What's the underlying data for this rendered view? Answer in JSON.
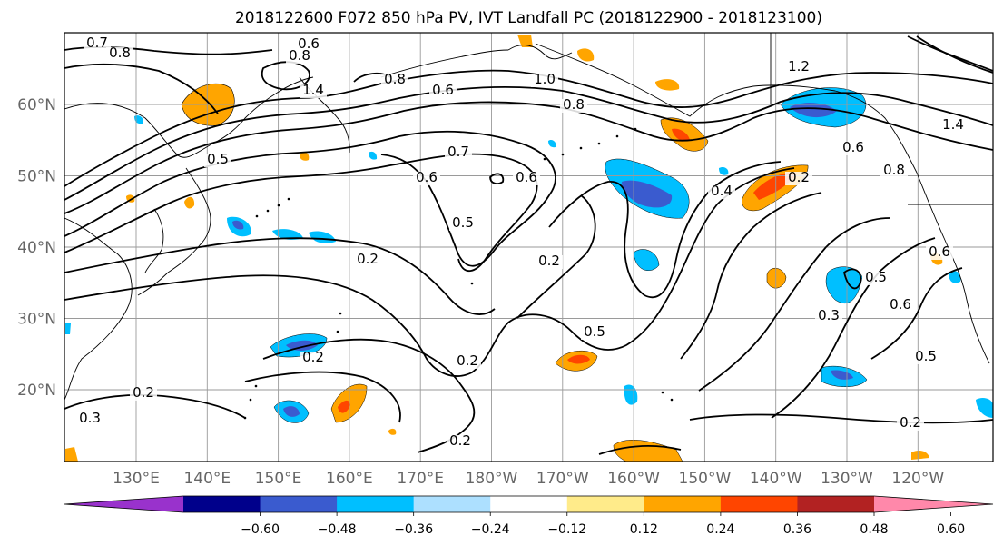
{
  "title": "2018122600 F072 850 hPa PV, IVT Landfall PC (2018122900 - 2018123100)",
  "map": {
    "lon_ticks": [
      "130°E",
      "140°E",
      "150°E",
      "160°E",
      "170°E",
      "180°W",
      "170°W",
      "160°W",
      "150°W",
      "140°W",
      "130°W",
      "120°W"
    ],
    "lat_ticks": [
      "60°N",
      "50°N",
      "40°N",
      "30°N",
      "20°N"
    ],
    "contour_labels": [
      "0.7",
      "0.8",
      "0.6",
      "0.8",
      "1.4",
      "0.8",
      "0.6",
      "1.0",
      "0.8",
      "1.2",
      "1.4",
      "0.8",
      "0.6",
      "0.7",
      "0.6",
      "0.6",
      "0.5",
      "0.4",
      "0.2",
      "0.2",
      "0.5",
      "0.3",
      "0.5",
      "0.6",
      "0.5",
      "0.6",
      "0.5",
      "0.2",
      "0.2",
      "0.2",
      "0.2",
      "0.3",
      "0.2",
      "0.2"
    ]
  },
  "colorbar": {
    "colors": [
      "#9932CC",
      "#00008B",
      "#3A5BCF",
      "#00BFFF",
      "#ADE0FF",
      "#FFFFFF",
      "#FFEB8A",
      "#FFA500",
      "#FF4500",
      "#B22222",
      "#FF88AA"
    ],
    "levels": [
      "−0.60",
      "−0.48",
      "−0.36",
      "−0.24",
      "−0.12",
      "0.12",
      "0.24",
      "0.36",
      "0.48",
      "0.60"
    ]
  }
}
